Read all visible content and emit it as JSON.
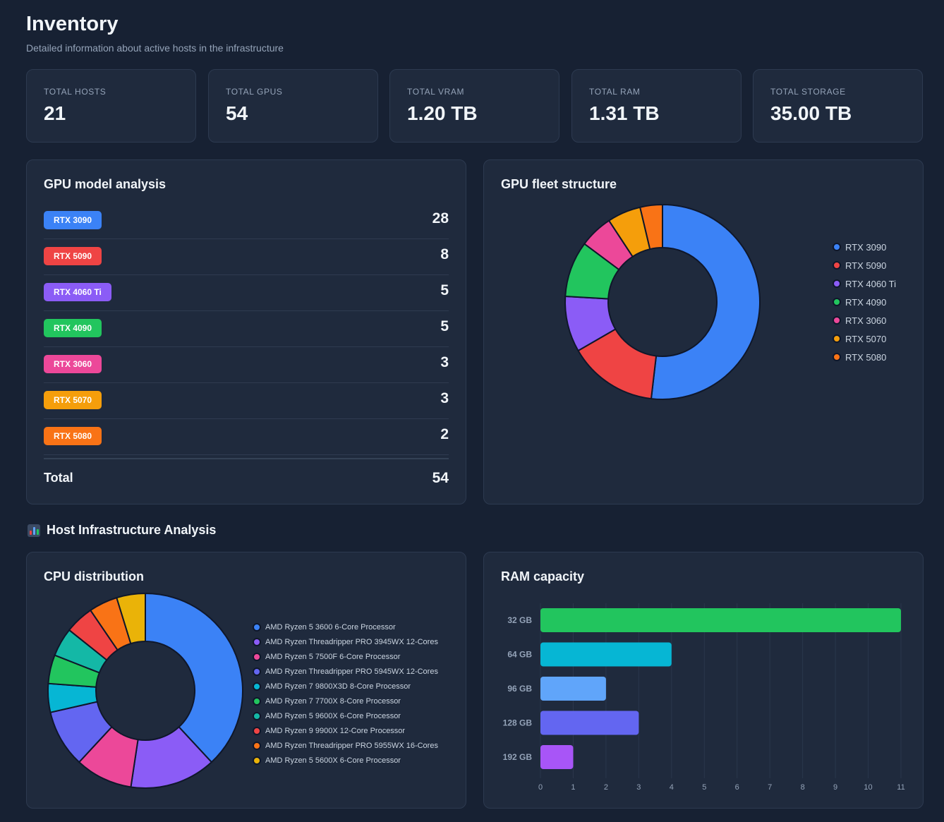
{
  "header": {
    "title": "Inventory",
    "subtitle": "Detailed information about active hosts in the infrastructure"
  },
  "stats": [
    {
      "label": "TOTAL HOSTS",
      "value": "21"
    },
    {
      "label": "TOTAL GPUS",
      "value": "54"
    },
    {
      "label": "TOTAL VRAM",
      "value": "1.20 TB"
    },
    {
      "label": "TOTAL RAM",
      "value": "1.31 TB"
    },
    {
      "label": "TOTAL STORAGE",
      "value": "35.00 TB"
    }
  ],
  "gpu_analysis": {
    "title": "GPU model analysis",
    "rows": [
      {
        "label": "RTX 3090",
        "count": "28",
        "color": "#3b82f6"
      },
      {
        "label": "RTX 5090",
        "count": "8",
        "color": "#ef4444"
      },
      {
        "label": "RTX 4060 Ti",
        "count": "5",
        "color": "#8b5cf6"
      },
      {
        "label": "RTX 4090",
        "count": "5",
        "color": "#22c55e"
      },
      {
        "label": "RTX 3060",
        "count": "3",
        "color": "#ec4899"
      },
      {
        "label": "RTX 5070",
        "count": "3",
        "color": "#f59e0b"
      },
      {
        "label": "RTX 5080",
        "count": "2",
        "color": "#f97316"
      }
    ],
    "total_label": "Total",
    "total_value": "54"
  },
  "host_section": {
    "title": "Host Infrastructure Analysis"
  },
  "chart_data": [
    {
      "type": "pie",
      "title": "GPU fleet structure",
      "categories": [
        "RTX 3090",
        "RTX 5090",
        "RTX 4060 Ti",
        "RTX 4090",
        "RTX 3060",
        "RTX 5070",
        "RTX 5080"
      ],
      "values": [
        28,
        8,
        5,
        5,
        3,
        3,
        2
      ],
      "colors": [
        "#3b82f6",
        "#ef4444",
        "#8b5cf6",
        "#22c55e",
        "#ec4899",
        "#f59e0b",
        "#f97316"
      ],
      "legend": "right"
    },
    {
      "type": "pie",
      "title": "CPU distribution",
      "categories": [
        "AMD Ryzen 5 3600 6-Core Processor",
        "AMD Ryzen Threadripper PRO 3945WX 12-Cores",
        "AMD Ryzen 5 7500F 6-Core Processor",
        "AMD Ryzen Threadripper PRO 5945WX 12-Cores",
        "AMD Ryzen 7 9800X3D 8-Core Processor",
        "AMD Ryzen 7 7700X 8-Core Processor",
        "AMD Ryzen 5 9600X 6-Core Processor",
        "AMD Ryzen 9 9900X 12-Core Processor",
        "AMD Ryzen Threadripper PRO 5955WX 16-Cores",
        "AMD Ryzen 5 5600X 6-Core Processor"
      ],
      "values": [
        8,
        3,
        2,
        2,
        1,
        1,
        1,
        1,
        1,
        1
      ],
      "colors": [
        "#3b82f6",
        "#8b5cf6",
        "#ec4899",
        "#6366f1",
        "#06b6d4",
        "#22c55e",
        "#14b8a6",
        "#ef4444",
        "#f97316",
        "#eab308"
      ],
      "legend": "right"
    },
    {
      "type": "bar",
      "orientation": "horizontal",
      "title": "RAM capacity",
      "categories": [
        "32 GB",
        "64 GB",
        "96 GB",
        "128 GB",
        "192 GB"
      ],
      "values": [
        11,
        4,
        2,
        3,
        1
      ],
      "colors": [
        "#22c55e",
        "#06b6d4",
        "#60a5fa",
        "#6366f1",
        "#a855f7"
      ],
      "xlim": [
        0,
        11
      ],
      "xticks": [
        "0",
        "1",
        "2",
        "3",
        "4",
        "5",
        "6",
        "7",
        "8",
        "9",
        "10",
        "11"
      ],
      "grid": true
    }
  ]
}
